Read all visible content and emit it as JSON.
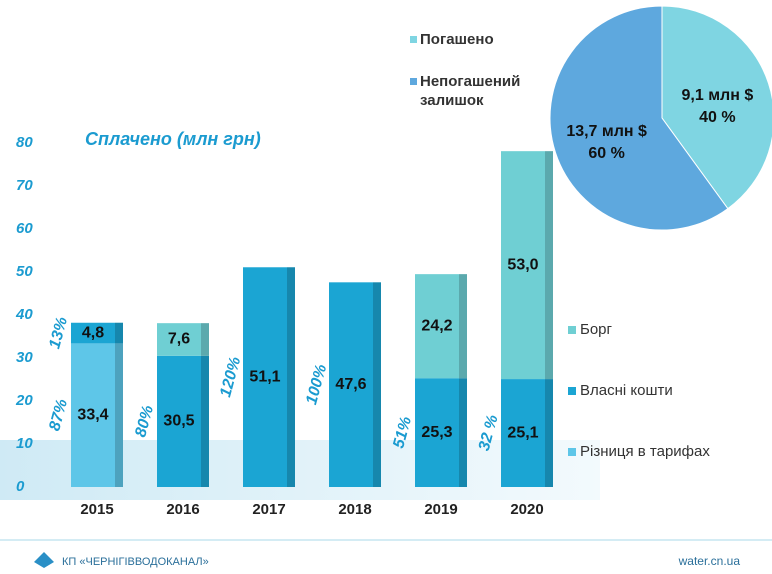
{
  "chart_data": [
    {
      "type": "bar",
      "stacked": true,
      "subtitle": "Сплачено  (млн грн)",
      "categories": [
        "2015",
        "2016",
        "2017",
        "2018",
        "2019",
        "2020"
      ],
      "series": [
        {
          "name": "Різниця в тарифах",
          "color": "#5ec6e8",
          "values": [
            33.4,
            null,
            null,
            null,
            null,
            null
          ],
          "value_labels": [
            "33,4",
            null,
            null,
            null,
            null,
            null
          ]
        },
        {
          "name": "Власні кошти",
          "color": "#1ba5d3",
          "values": [
            4.8,
            30.5,
            51.1,
            47.6,
            25.3,
            25.1
          ],
          "value_labels": [
            "4,8",
            "30,5",
            "51,1",
            "47,6",
            "25,3",
            "25,1"
          ]
        },
        {
          "name": "Борг",
          "color": "#6fcfd3",
          "values": [
            null,
            7.6,
            null,
            null,
            24.2,
            53.0
          ],
          "value_labels": [
            null,
            "7,6",
            null,
            null,
            "24,2",
            "53,0"
          ]
        }
      ],
      "percent_labels": [
        [
          "87%",
          "13%"
        ],
        [
          "80%"
        ],
        [
          "120%"
        ],
        [
          "100%"
        ],
        [
          "51%"
        ],
        [
          "32 %"
        ]
      ],
      "ylim": [
        0,
        80
      ],
      "yticks": [
        0,
        10,
        20,
        30,
        40,
        50,
        60,
        70,
        80
      ],
      "grid": false
    },
    {
      "type": "pie",
      "categories": [
        "Погашено",
        "Непогашений залишок"
      ],
      "values": [
        40,
        60
      ],
      "value_labels": [
        "40 %",
        "60 %"
      ],
      "amount_labels": [
        "9,1 млн $",
        "13,7 млн $"
      ],
      "colors": [
        "#7fd5e2",
        "#5ea8de"
      ]
    }
  ],
  "footer": {
    "org": "КП «ЧЕРНІГІВВОДОКАНАЛ»",
    "site": "water.cn.ua"
  }
}
